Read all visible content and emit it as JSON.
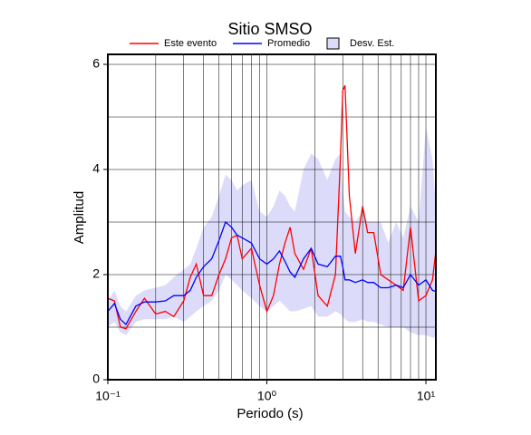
{
  "chart_data": {
    "type": "line",
    "title": "Sitio SMSO",
    "x_label": "Periodo (s)",
    "y_label": "Amplitud",
    "log_x": true,
    "grid": true,
    "x": [
      0.1,
      0.11,
      0.12,
      0.13,
      0.15,
      0.17,
      0.2,
      0.23,
      0.26,
      0.3,
      0.33,
      0.36,
      0.4,
      0.45,
      0.5,
      0.55,
      0.6,
      0.65,
      0.7,
      0.8,
      0.9,
      1.0,
      1.1,
      1.2,
      1.3,
      1.4,
      1.5,
      1.7,
      1.9,
      2.1,
      2.4,
      2.7,
      2.9,
      3.0,
      3.1,
      3.3,
      3.6,
      4.0,
      4.3,
      4.7,
      5.2,
      5.8,
      6.5,
      7.2,
      8.0,
      9.0,
      10,
      11,
      11.5
    ],
    "band": {
      "name": "Desv. Est.",
      "color": "#dcdcfa",
      "border": "#000000",
      "lower": [
        1.0,
        1.1,
        0.9,
        0.85,
        1.1,
        1.15,
        1.15,
        1.15,
        1.2,
        1.1,
        1.2,
        1.3,
        1.4,
        1.5,
        1.7,
        2.0,
        1.9,
        1.8,
        1.7,
        1.55,
        1.4,
        1.3,
        1.4,
        1.5,
        1.4,
        1.3,
        1.3,
        1.35,
        1.4,
        1.2,
        1.2,
        1.3,
        1.25,
        1.2,
        1.15,
        1.1,
        1.1,
        1.15,
        1.1,
        1.1,
        1.05,
        1.0,
        1.0,
        1.0,
        0.9,
        0.85,
        0.85,
        0.8,
        0.8
      ],
      "upper": [
        1.5,
        1.7,
        1.4,
        1.3,
        1.6,
        1.7,
        1.75,
        1.8,
        1.95,
        2.1,
        2.2,
        2.5,
        2.9,
        3.1,
        3.5,
        3.9,
        3.8,
        3.6,
        3.7,
        3.8,
        3.2,
        3.1,
        3.3,
        3.6,
        3.5,
        3.3,
        3.2,
        4.0,
        4.3,
        4.2,
        3.8,
        4.2,
        4.3,
        3.6,
        3.2,
        3.1,
        3.0,
        3.2,
        3.0,
        3.0,
        3.0,
        2.6,
        3.0,
        2.7,
        3.3,
        3.0,
        4.8,
        4.2,
        3.4
      ]
    },
    "series": [
      {
        "name": "Este evento",
        "color": "#ff0000",
        "values": [
          1.55,
          1.5,
          1.0,
          0.97,
          1.3,
          1.55,
          1.25,
          1.3,
          1.2,
          1.5,
          1.95,
          2.2,
          1.6,
          1.6,
          2.0,
          2.3,
          2.7,
          2.75,
          2.3,
          2.5,
          1.8,
          1.3,
          1.6,
          2.2,
          2.6,
          2.9,
          2.4,
          2.1,
          2.5,
          1.6,
          1.4,
          2.0,
          4.2,
          5.5,
          5.6,
          3.5,
          2.4,
          3.3,
          2.8,
          2.8,
          2.0,
          1.9,
          1.8,
          1.7,
          2.9,
          1.5,
          1.6,
          1.9,
          2.4
        ]
      },
      {
        "name": "Promedio",
        "color": "#0000ff",
        "values": [
          1.3,
          1.45,
          1.15,
          1.05,
          1.4,
          1.48,
          1.48,
          1.5,
          1.6,
          1.6,
          1.7,
          1.95,
          2.15,
          2.3,
          2.65,
          3.0,
          2.9,
          2.75,
          2.7,
          2.6,
          2.3,
          2.2,
          2.3,
          2.45,
          2.25,
          2.05,
          1.95,
          2.3,
          2.5,
          2.2,
          2.15,
          2.35,
          2.35,
          2.15,
          1.9,
          1.9,
          1.85,
          1.9,
          1.85,
          1.85,
          1.75,
          1.75,
          1.8,
          1.75,
          2.0,
          1.8,
          1.9,
          1.7,
          1.68
        ]
      }
    ],
    "xlim": [
      0.1,
      11.55
    ],
    "xticks": [
      {
        "value": 0.1,
        "label": "10⁻¹"
      },
      {
        "value": 1,
        "label": "10⁰"
      },
      {
        "value": 10,
        "label": "10¹"
      }
    ],
    "xminor": [
      0.2,
      0.3,
      0.4,
      0.5,
      0.6,
      0.7,
      0.8,
      0.9,
      2,
      3,
      4,
      5,
      6,
      7,
      8,
      9
    ],
    "ylim": [
      0,
      6.19
    ],
    "yticks": [
      0,
      2,
      4,
      6
    ],
    "yminor": [
      1,
      3,
      5
    ]
  }
}
